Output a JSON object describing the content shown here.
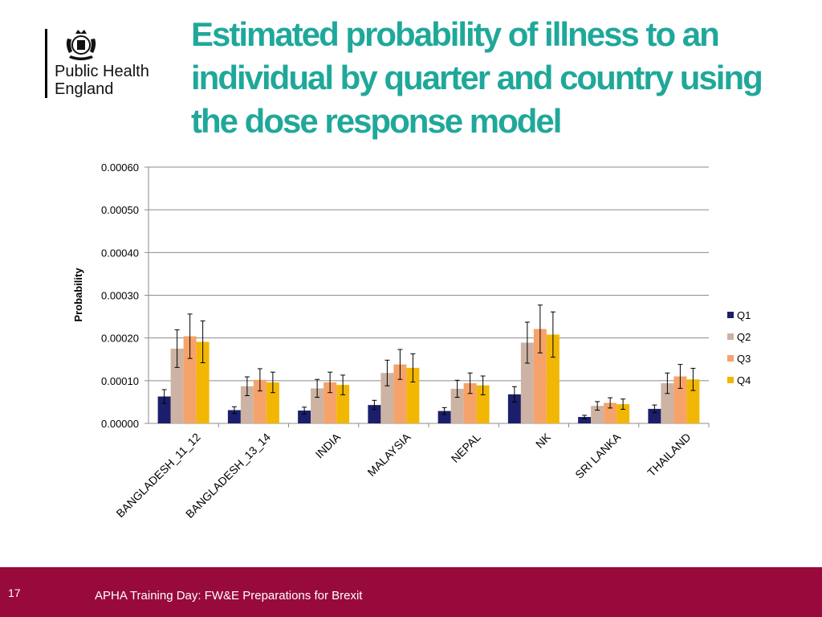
{
  "header": {
    "logo_line1": "Public Health",
    "logo_line2": "England",
    "title_lines": [
      "Estimated probability of illness to an",
      "individual by quarter and country using",
      "the dose response model"
    ]
  },
  "footer": {
    "page_number": "17",
    "caption": "APHA Training Day: FW&E Preparations for Brexit"
  },
  "colors": {
    "title": "#1fa89a",
    "footer_bg": "#980a3c",
    "Q1": "#1b1f6b",
    "Q2": "#cdb3a3",
    "Q3": "#f5a36a",
    "Q4": "#f2b705"
  },
  "chart_data": {
    "type": "bar",
    "title": "",
    "xlabel": "",
    "ylabel": "Probability",
    "ylim": [
      0,
      0.0006
    ],
    "yticks": [
      0,
      0.0001,
      0.0002,
      0.0003,
      0.0004,
      0.0005,
      0.0006
    ],
    "ytick_labels": [
      "0.00000",
      "0.00010",
      "0.00020",
      "0.00030",
      "0.00040",
      "0.00050",
      "0.00060"
    ],
    "grid": true,
    "legend_position": "right",
    "categories": [
      "BANGLADESH_11_12",
      "BANGLADESH_13_14",
      "INDIA",
      "MALAYSIA",
      "NEPAL",
      "NK",
      "SRI LANKA",
      "THAILAND"
    ],
    "series": [
      {
        "name": "Q1",
        "values": [
          6.3e-05,
          3.1e-05,
          3e-05,
          4.3e-05,
          2.9e-05,
          6.8e-05,
          1.5e-05,
          3.4e-05
        ],
        "error": [
          1.6e-05,
          8e-06,
          8e-06,
          1.1e-05,
          8e-06,
          1.8e-05,
          4e-06,
          9e-06
        ]
      },
      {
        "name": "Q2",
        "values": [
          0.000175,
          8.7e-05,
          8.2e-05,
          0.000118,
          8.1e-05,
          0.000189,
          4.1e-05,
          9.4e-05
        ],
        "error": [
          4.4e-05,
          2.2e-05,
          2.1e-05,
          3e-05,
          2e-05,
          4.8e-05,
          1e-05,
          2.4e-05
        ]
      },
      {
        "name": "Q3",
        "values": [
          0.000204,
          0.000102,
          9.6e-05,
          0.000138,
          9.4e-05,
          0.000221,
          4.8e-05,
          0.00011
        ],
        "error": [
          5.2e-05,
          2.6e-05,
          2.4e-05,
          3.5e-05,
          2.4e-05,
          5.6e-05,
          1.2e-05,
          2.8e-05
        ]
      },
      {
        "name": "Q4",
        "values": [
          0.000191,
          9.6e-05,
          9e-05,
          0.00013,
          8.9e-05,
          0.000208,
          4.5e-05,
          0.000103
        ],
        "error": [
          4.9e-05,
          2.4e-05,
          2.3e-05,
          3.3e-05,
          2.2e-05,
          5.3e-05,
          1.2e-05,
          2.6e-05
        ]
      }
    ]
  }
}
